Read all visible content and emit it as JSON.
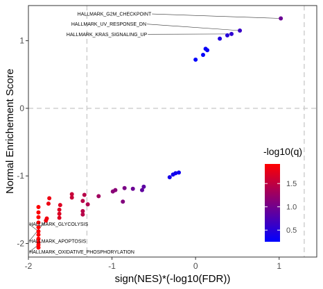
{
  "chart_data": {
    "type": "scatter",
    "xlabel": "sign(NES)*(-log10(FDR))",
    "ylabel": "Normal Enrichement Score",
    "xlim": [
      -2.0,
      1.45
    ],
    "ylim": [
      -2.2,
      1.52
    ],
    "x_ticks": [
      -2,
      -1,
      0,
      1
    ],
    "y_ticks": [
      -2,
      -1,
      0,
      1
    ],
    "x_tick_labels": [
      "-2",
      "-1",
      "0",
      "1"
    ],
    "y_tick_labels": [
      "-2",
      "-1",
      "0",
      "1"
    ],
    "grid": false,
    "reference_lines": {
      "vertical": [
        -1.3,
        1.3
      ],
      "horizontal": [
        0
      ],
      "style": "dashed"
    },
    "color_scale": {
      "title": "-log10(q)",
      "low_color": "#0000ff",
      "high_color": "#ff0000",
      "min": 0.25,
      "max": 1.92,
      "ticks": [
        0.5,
        1.0,
        1.5
      ],
      "tick_labels": [
        "0.5",
        "1.0",
        "1.5"
      ],
      "placement": "right-inside"
    },
    "points": [
      {
        "x": 1.02,
        "y": 1.33,
        "q": 0.95
      },
      {
        "x": 0.53,
        "y": 1.15,
        "q": 0.62
      },
      {
        "x": 0.43,
        "y": 1.1,
        "q": 0.55
      },
      {
        "x": 0.38,
        "y": 1.08,
        "q": 0.5
      },
      {
        "x": 0.29,
        "y": 1.03,
        "q": 0.45
      },
      {
        "x": 0.12,
        "y": 0.88,
        "q": 0.3
      },
      {
        "x": 0.14,
        "y": 0.86,
        "q": 0.3
      },
      {
        "x": 0.09,
        "y": 0.79,
        "q": 0.28
      },
      {
        "x": 0.0,
        "y": 0.72,
        "q": 0.26
      },
      {
        "x": -0.2,
        "y": -0.95,
        "q": 0.35
      },
      {
        "x": -0.24,
        "y": -0.96,
        "q": 0.36
      },
      {
        "x": -0.27,
        "y": -0.98,
        "q": 0.37
      },
      {
        "x": -0.31,
        "y": -1.02,
        "q": 0.4
      },
      {
        "x": -0.62,
        "y": -1.16,
        "q": 0.85
      },
      {
        "x": -0.64,
        "y": -1.21,
        "q": 0.88
      },
      {
        "x": -0.75,
        "y": -1.19,
        "q": 0.95
      },
      {
        "x": -0.85,
        "y": -1.18,
        "q": 1.05
      },
      {
        "x": -0.87,
        "y": -1.38,
        "q": 1.1
      },
      {
        "x": -0.96,
        "y": -1.21,
        "q": 1.15
      },
      {
        "x": -0.99,
        "y": -1.23,
        "q": 1.15
      },
      {
        "x": -1.16,
        "y": -1.3,
        "q": 1.3
      },
      {
        "x": -1.29,
        "y": -1.42,
        "q": 1.4
      },
      {
        "x": -1.33,
        "y": -1.28,
        "q": 1.45
      },
      {
        "x": -1.35,
        "y": -1.37,
        "q": 1.45
      },
      {
        "x": -1.35,
        "y": -1.52,
        "q": 1.45
      },
      {
        "x": -1.35,
        "y": -1.57,
        "q": 1.45
      },
      {
        "x": -1.48,
        "y": -1.27,
        "q": 1.55
      },
      {
        "x": -1.48,
        "y": -1.32,
        "q": 1.55
      },
      {
        "x": -1.62,
        "y": -1.43,
        "q": 1.7
      },
      {
        "x": -1.63,
        "y": -1.5,
        "q": 1.7
      },
      {
        "x": -1.63,
        "y": -1.56,
        "q": 1.7
      },
      {
        "x": -1.63,
        "y": -1.62,
        "q": 1.7
      },
      {
        "x": -1.75,
        "y": -1.33,
        "q": 1.8
      },
      {
        "x": -1.76,
        "y": -1.41,
        "q": 1.8
      },
      {
        "x": -1.78,
        "y": -1.63,
        "q": 1.82
      },
      {
        "x": -1.79,
        "y": -1.66,
        "q": 1.82
      },
      {
        "x": -1.88,
        "y": -1.46,
        "q": 1.9
      },
      {
        "x": -1.88,
        "y": -1.54,
        "q": 1.9
      },
      {
        "x": -1.88,
        "y": -1.61,
        "q": 1.9
      },
      {
        "x": -1.88,
        "y": -1.69,
        "q": 1.9
      },
      {
        "x": -1.88,
        "y": -1.76,
        "q": 1.9
      },
      {
        "x": -1.88,
        "y": -1.82,
        "q": 1.9
      },
      {
        "x": -1.88,
        "y": -1.87,
        "q": 1.9
      },
      {
        "x": -1.88,
        "y": -1.93,
        "q": 1.9
      },
      {
        "x": -1.88,
        "y": -1.98,
        "q": 1.9
      },
      {
        "x": -1.88,
        "y": -2.02,
        "q": 1.9
      },
      {
        "x": -1.88,
        "y": -2.06,
        "q": 1.9
      }
    ],
    "annotations": [
      {
        "text": "HALLMARK_G2M_CHECKPOINT",
        "point_x": 1.02,
        "point_y": 1.33,
        "label_x": -0.53,
        "label_y": 1.37,
        "anchor": "end"
      },
      {
        "text": "HALLMARK_UV_RESPONSE_DN",
        "point_x": 0.53,
        "point_y": 1.15,
        "label_x": -0.59,
        "label_y": 1.22,
        "anchor": "end"
      },
      {
        "text": "HALLMARK_KRAS_SIGNALING_UP",
        "point_x": 0.43,
        "point_y": 1.1,
        "label_x": -0.58,
        "label_y": 1.07,
        "anchor": "end"
      },
      {
        "text": "HALLMARK_GLYCOLYSIS",
        "point_x": -1.88,
        "point_y": -1.82,
        "label_x": -1.99,
        "label_y": -1.74,
        "anchor": "start"
      },
      {
        "text": "HALLMARK_APOPTOSIS",
        "point_x": -1.79,
        "point_y": -1.66,
        "label_x": -1.99,
        "label_y": -1.99,
        "anchor": "start"
      },
      {
        "text": "HALLMARK_OXIDATIVE_PHOSPHORYLATION",
        "point_x": -1.88,
        "point_y": -2.02,
        "label_x": -1.99,
        "label_y": -2.15,
        "anchor": "start"
      }
    ]
  }
}
